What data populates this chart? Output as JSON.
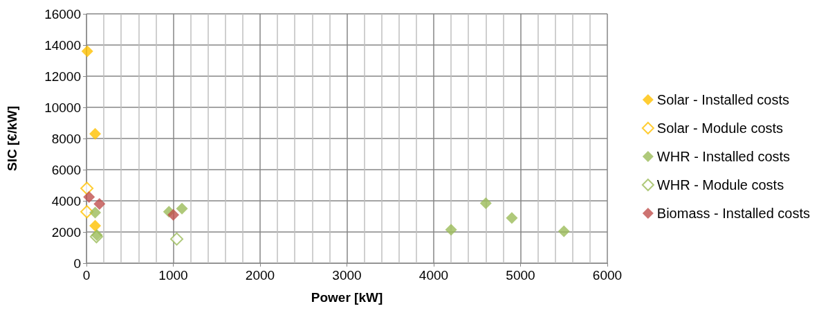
{
  "chart_data": {
    "type": "scatter",
    "xlabel": "Power [kW]",
    "ylabel": "SIC [€/kW]",
    "xlim": [
      0,
      6000
    ],
    "xticks": [
      0,
      1000,
      2000,
      3000,
      4000,
      5000,
      6000
    ],
    "ylim": [
      0,
      16000
    ],
    "yticks": [
      0,
      2000,
      4000,
      6000,
      8000,
      10000,
      12000,
      14000,
      16000
    ],
    "grid": true,
    "legend": "right",
    "marker": "diamond",
    "series": [
      {
        "name": "Solar - Installed costs",
        "color": "#ffc000",
        "x": [
          10,
          100,
          100
        ],
        "values": [
          13600,
          8300,
          2400
        ]
      },
      {
        "name": "Solar - Module costs",
        "color": "#ffc000",
        "marker": "diamond-open",
        "x": [
          5,
          5
        ],
        "values": [
          4800,
          3300
        ]
      },
      {
        "name": "WHR - Installed costs",
        "color": "#9bbb59",
        "x": [
          100,
          120,
          950,
          1100,
          4200,
          4600,
          4900,
          5500
        ],
        "values": [
          3250,
          1800,
          3300,
          3500,
          2150,
          3850,
          2900,
          2050
        ]
      },
      {
        "name": "WHR - Module costs",
        "color": "#9bbb59",
        "marker": "diamond-open",
        "x": [
          115,
          1040
        ],
        "values": [
          1700,
          1550
        ]
      },
      {
        "name": "Biomass - Installed costs",
        "color": "#c0504d",
        "x": [
          30,
          150,
          1000
        ],
        "values": [
          4250,
          3800,
          3100
        ]
      }
    ]
  }
}
